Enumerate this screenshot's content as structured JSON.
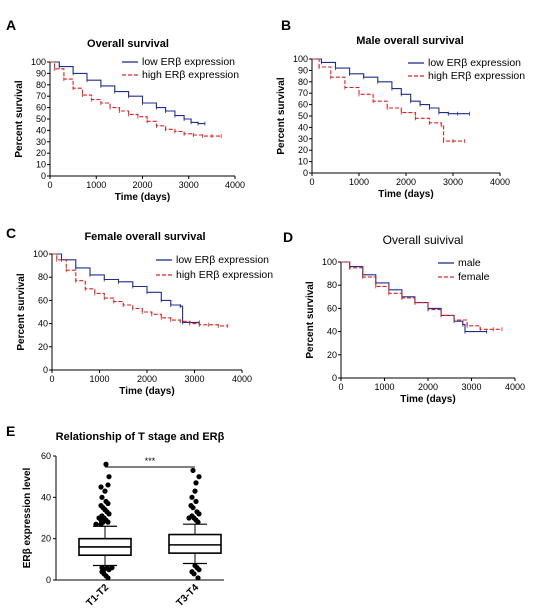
{
  "panels": {
    "A": {
      "label": "A"
    },
    "B": {
      "label": "B"
    },
    "C": {
      "label": "C"
    },
    "D": {
      "label": "D"
    },
    "E": {
      "label": "E"
    }
  },
  "chart_data": [
    {
      "id": "A",
      "type": "line",
      "title": "Overall survival",
      "xlabel": "Time (days)",
      "ylabel": "Percent survival",
      "xlim": [
        0,
        4000
      ],
      "ylim": [
        0,
        100
      ],
      "xticks": [
        0,
        1000,
        2000,
        3000,
        4000
      ],
      "yticks": [
        0,
        10,
        20,
        30,
        40,
        50,
        60,
        70,
        80,
        90,
        100
      ],
      "legend_position": "top-right",
      "series": [
        {
          "name": "low ERβ expression",
          "color": "#1f2f8f",
          "style": "solid",
          "x": [
            0,
            200,
            500,
            800,
            1100,
            1400,
            1700,
            2000,
            2300,
            2500,
            2700,
            2900,
            3050,
            3200,
            3350
          ],
          "y": [
            100,
            96,
            90,
            84,
            79,
            74,
            70,
            64,
            60,
            57,
            53,
            50,
            47,
            46,
            46
          ]
        },
        {
          "name": "high ERβ expression",
          "color": "#e02020",
          "style": "dashed",
          "x": [
            0,
            100,
            300,
            500,
            700,
            900,
            1100,
            1300,
            1500,
            1700,
            1900,
            2100,
            2300,
            2500,
            2700,
            2900,
            3100,
            3300,
            3500,
            3700
          ],
          "y": [
            100,
            94,
            85,
            77,
            71,
            67,
            64,
            60,
            57,
            54,
            52,
            48,
            44,
            41,
            39,
            37,
            36,
            35,
            35,
            35
          ]
        }
      ]
    },
    {
      "id": "B",
      "type": "line",
      "title": "Male overall survival",
      "xlabel": "Time (days)",
      "ylabel": "Percent survival",
      "xlim": [
        0,
        4000
      ],
      "ylim": [
        0,
        100
      ],
      "xticks": [
        0,
        1000,
        2000,
        3000,
        4000
      ],
      "yticks": [
        0,
        10,
        20,
        30,
        40,
        50,
        60,
        70,
        80,
        90,
        100
      ],
      "legend_position": "top-right",
      "series": [
        {
          "name": "low ERβ expression",
          "color": "#1f2f8f",
          "style": "solid",
          "x": [
            0,
            200,
            500,
            800,
            1100,
            1400,
            1700,
            1900,
            2100,
            2300,
            2500,
            2700,
            2900,
            3100,
            3350
          ],
          "y": [
            100,
            97,
            92,
            87,
            84,
            80,
            74,
            69,
            63,
            60,
            57,
            53,
            52,
            52,
            52
          ]
        },
        {
          "name": "high ERβ expression",
          "color": "#e02020",
          "style": "dashed",
          "x": [
            0,
            150,
            400,
            700,
            1000,
            1300,
            1600,
            1900,
            2200,
            2500,
            2750,
            2800,
            3000,
            3250
          ],
          "y": [
            100,
            93,
            84,
            75,
            69,
            63,
            57,
            53,
            48,
            44,
            42,
            28,
            28,
            28
          ]
        }
      ]
    },
    {
      "id": "C",
      "type": "line",
      "title": "Female overall survival",
      "xlabel": "Time (days)",
      "ylabel": "Percent survival",
      "xlim": [
        0,
        4000
      ],
      "ylim": [
        0,
        100
      ],
      "xticks": [
        0,
        1000,
        2000,
        3000,
        4000
      ],
      "yticks": [
        0,
        20,
        40,
        60,
        80,
        100
      ],
      "legend_position": "top-right",
      "series": [
        {
          "name": "low ERβ expression",
          "color": "#1f2f8f",
          "style": "solid",
          "x": [
            0,
            200,
            500,
            800,
            1100,
            1400,
            1700,
            2000,
            2300,
            2500,
            2700,
            2750,
            3100
          ],
          "y": [
            100,
            95,
            88,
            82,
            78,
            76,
            72,
            67,
            60,
            56,
            55,
            41,
            41
          ]
        },
        {
          "name": "high ERβ expression",
          "color": "#e02020",
          "style": "dashed",
          "x": [
            0,
            100,
            300,
            500,
            700,
            900,
            1100,
            1300,
            1500,
            1700,
            1900,
            2100,
            2300,
            2500,
            2700,
            2900,
            3100,
            3300,
            3500,
            3700
          ],
          "y": [
            100,
            95,
            86,
            77,
            70,
            66,
            62,
            59,
            56,
            53,
            50,
            48,
            45,
            43,
            42,
            40,
            39,
            39,
            38,
            38
          ]
        }
      ]
    },
    {
      "id": "D",
      "type": "line",
      "title": "Overall suivival",
      "xlabel": "Time (days)",
      "ylabel": "Percent survival",
      "xlim": [
        0,
        4000
      ],
      "ylim": [
        0,
        100
      ],
      "xticks": [
        0,
        1000,
        2000,
        3000,
        4000
      ],
      "yticks": [
        0,
        20,
        40,
        60,
        80,
        100
      ],
      "legend_position": "top-right",
      "series": [
        {
          "name": "male",
          "color": "#1f2f8f",
          "style": "solid",
          "x": [
            0,
            200,
            500,
            800,
            1100,
            1400,
            1700,
            2000,
            2300,
            2600,
            2800,
            2850,
            3350
          ],
          "y": [
            100,
            96,
            89,
            82,
            76,
            70,
            65,
            60,
            54,
            49,
            46,
            40,
            40
          ]
        },
        {
          "name": "female",
          "color": "#e02020",
          "style": "dashed",
          "x": [
            0,
            200,
            500,
            800,
            1100,
            1400,
            1700,
            2000,
            2300,
            2600,
            2900,
            3200,
            3500,
            3700
          ],
          "y": [
            100,
            95,
            87,
            79,
            73,
            69,
            65,
            59,
            54,
            50,
            45,
            42,
            42,
            42
          ]
        }
      ]
    },
    {
      "id": "E",
      "type": "box",
      "title": "Relationship of T stage and ERβ",
      "ylabel": "ERβ expression level",
      "ylim": [
        0,
        60
      ],
      "yticks": [
        0,
        20,
        40,
        60
      ],
      "categories": [
        "T1-T2",
        "T3-T4"
      ],
      "significance": "***",
      "boxes": [
        {
          "category": "T1-T2",
          "whisker_low": 7,
          "q1": 12,
          "median": 16,
          "q3": 20,
          "whisker_high": 26,
          "outliers_high": [
            27,
            27,
            28,
            28,
            29,
            29,
            30,
            30,
            31,
            32,
            33,
            34,
            35,
            36,
            37,
            38,
            40,
            43,
            45,
            46,
            50,
            56
          ],
          "outliers_low": [
            1,
            2,
            3,
            4,
            5,
            5,
            6,
            6,
            6
          ]
        },
        {
          "category": "T3-T4",
          "whisker_low": 8,
          "q1": 13,
          "median": 17,
          "q3": 22,
          "whisker_high": 27,
          "outliers_high": [
            28,
            29,
            30,
            30,
            31,
            32,
            33,
            35,
            36,
            38,
            40,
            43,
            47,
            50,
            53
          ],
          "outliers_low": [
            1,
            3,
            4,
            5,
            6,
            7
          ]
        }
      ]
    }
  ]
}
